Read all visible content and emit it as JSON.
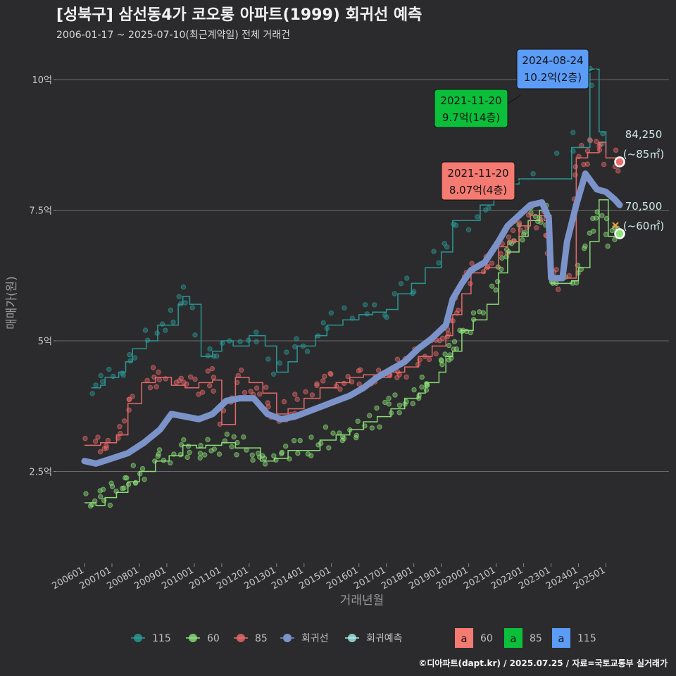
{
  "chart_data": {
    "type": "line",
    "title": "[성북구] 삼선동4가 코오롱 아파트(1999) 회귀선 예측",
    "subtitle": "2006-01-17 ~ 2025-07-10(최근계약일) 전체 거래건",
    "xlabel": "거래년월",
    "ylabel": "매매가(원)",
    "x_range": [
      "2006-01",
      "2025-07"
    ],
    "ylim": [
      0.8,
      10.7
    ],
    "x_ticks": [
      "200601",
      "200701",
      "200801",
      "200901",
      "201001",
      "201101",
      "201201",
      "201301",
      "201401",
      "201501",
      "201601",
      "201701",
      "201801",
      "201901",
      "202001",
      "202101",
      "202201",
      "202301",
      "202401",
      "202501"
    ],
    "y_ticks": [
      {
        "value": 2.5,
        "label": "2.5억"
      },
      {
        "value": 5,
        "label": "5억"
      },
      {
        "value": 7.5,
        "label": "7.5억"
      },
      {
        "value": 10,
        "label": "10억"
      }
    ],
    "grid": true,
    "colors": {
      "s115": "#2a9d9a",
      "s60": "#8ee57a",
      "s85": "#ef6b6b",
      "reg": "#7b93c9",
      "pred": "#a8f0ee",
      "bg": "#2b2b2d"
    },
    "series": [
      {
        "name": "115",
        "color": "#2a9d9a",
        "points": [
          [
            "2006-04",
            4.1
          ],
          [
            "2006-08",
            4.15
          ],
          [
            "2006-10",
            4.3
          ],
          [
            "2007-04",
            4.4
          ],
          [
            "2007-07",
            4.6
          ],
          [
            "2007-10",
            4.85
          ],
          [
            "2008-04",
            5.0
          ],
          [
            "2008-09",
            5.3
          ],
          [
            "2009-02",
            5.3
          ],
          [
            "2009-06",
            5.7
          ],
          [
            "2009-08",
            5.85
          ],
          [
            "2009-11",
            5.7
          ],
          [
            "2010-04",
            4.7
          ],
          [
            "2010-09",
            4.8
          ],
          [
            "2011-01",
            5.0
          ],
          [
            "2011-06",
            4.9
          ],
          [
            "2012-01",
            5.1
          ],
          [
            "2012-08",
            4.9
          ],
          [
            "2013-01",
            4.4
          ],
          [
            "2013-06",
            4.6
          ],
          [
            "2013-10",
            4.9
          ],
          [
            "2014-06",
            5.1
          ],
          [
            "2014-11",
            5.3
          ],
          [
            "2015-06",
            5.4
          ],
          [
            "2016-01",
            5.5
          ],
          [
            "2016-07",
            5.55
          ],
          [
            "2017-01",
            5.6
          ],
          [
            "2017-06",
            5.9
          ],
          [
            "2017-12",
            6.1
          ],
          [
            "2018-06",
            6.4
          ],
          [
            "2019-01",
            6.7
          ],
          [
            "2019-06",
            7.3
          ],
          [
            "2019-12",
            7.3
          ],
          [
            "2020-06",
            7.6
          ],
          [
            "2020-12",
            7.8
          ],
          [
            "2021-06",
            8.0
          ],
          [
            "2021-11",
            8.1
          ],
          [
            "2023-10",
            8.7
          ],
          [
            "2024-06",
            10.2
          ],
          [
            "2024-10",
            9.0
          ],
          [
            "2025-01",
            8.6
          ]
        ]
      },
      {
        "name": "60",
        "color": "#8ee57a",
        "points": [
          [
            "2006-01",
            1.9
          ],
          [
            "2006-06",
            1.85
          ],
          [
            "2006-10",
            2.0
          ],
          [
            "2007-03",
            2.1
          ],
          [
            "2007-08",
            2.3
          ],
          [
            "2008-01",
            2.5
          ],
          [
            "2008-08",
            2.7
          ],
          [
            "2009-02",
            2.8
          ],
          [
            "2009-08",
            3.0
          ],
          [
            "2010-02",
            2.95
          ],
          [
            "2010-06",
            3.0
          ],
          [
            "2011-01",
            3.05
          ],
          [
            "2011-07",
            2.95
          ],
          [
            "2012-01",
            2.95
          ],
          [
            "2012-06",
            2.7
          ],
          [
            "2012-12",
            2.75
          ],
          [
            "2013-06",
            2.9
          ],
          [
            "2014-01",
            2.9
          ],
          [
            "2014-08",
            3.1
          ],
          [
            "2015-03",
            3.2
          ],
          [
            "2015-09",
            3.3
          ],
          [
            "2016-03",
            3.45
          ],
          [
            "2016-09",
            3.55
          ],
          [
            "2017-03",
            3.7
          ],
          [
            "2017-09",
            3.9
          ],
          [
            "2018-03",
            4.0
          ],
          [
            "2018-06",
            4.2
          ],
          [
            "2018-12",
            4.4
          ],
          [
            "2019-03",
            4.7
          ],
          [
            "2019-06",
            4.8
          ],
          [
            "2019-10",
            5.2
          ],
          [
            "2020-03",
            5.4
          ],
          [
            "2020-09",
            5.7
          ],
          [
            "2021-02",
            6.3
          ],
          [
            "2021-06",
            6.7
          ],
          [
            "2021-11",
            7.0
          ],
          [
            "2022-03",
            7.3
          ],
          [
            "2022-08",
            7.5
          ],
          [
            "2022-12",
            7.4
          ],
          [
            "2023-01",
            6.1
          ],
          [
            "2023-10",
            6.15
          ],
          [
            "2024-01",
            6.4
          ],
          [
            "2024-06",
            6.9
          ],
          [
            "2024-10",
            7.7
          ],
          [
            "2025-02",
            7.0
          ],
          [
            "2025-07",
            7.05
          ]
        ]
      },
      {
        "name": "85",
        "color": "#ef6b6b",
        "points": [
          [
            "2006-01",
            3.0
          ],
          [
            "2006-08",
            3.05
          ],
          [
            "2007-03",
            3.2
          ],
          [
            "2007-08",
            3.8
          ],
          [
            "2008-02",
            4.2
          ],
          [
            "2008-08",
            4.3
          ],
          [
            "2009-03",
            4.15
          ],
          [
            "2009-09",
            4.1
          ],
          [
            "2010-03",
            4.2
          ],
          [
            "2010-09",
            4.25
          ],
          [
            "2011-01",
            3.4
          ],
          [
            "2011-07",
            4.3
          ],
          [
            "2012-01",
            4.2
          ],
          [
            "2012-07",
            4.0
          ],
          [
            "2013-01",
            3.6
          ],
          [
            "2013-06",
            3.7
          ],
          [
            "2014-01",
            3.9
          ],
          [
            "2014-08",
            4.1
          ],
          [
            "2015-03",
            4.2
          ],
          [
            "2015-09",
            4.3
          ],
          [
            "2016-03",
            4.35
          ],
          [
            "2016-09",
            4.3
          ],
          [
            "2017-03",
            4.4
          ],
          [
            "2017-09",
            4.5
          ],
          [
            "2018-03",
            4.7
          ],
          [
            "2018-09",
            4.9
          ],
          [
            "2019-03",
            5.1
          ],
          [
            "2019-06",
            5.5
          ],
          [
            "2019-10",
            5.9
          ],
          [
            "2020-02",
            6.3
          ],
          [
            "2020-08",
            6.4
          ],
          [
            "2021-02",
            6.8
          ],
          [
            "2021-06",
            6.9
          ],
          [
            "2021-11",
            7.2
          ],
          [
            "2022-04",
            7.4
          ],
          [
            "2022-10",
            7.3
          ],
          [
            "2023-01",
            6.2
          ],
          [
            "2023-10",
            6.2
          ],
          [
            "2023-12",
            8.5
          ],
          [
            "2024-05",
            8.6
          ],
          [
            "2024-10",
            8.8
          ],
          [
            "2025-01",
            8.5
          ],
          [
            "2025-07",
            8.45
          ]
        ]
      },
      {
        "name": "회귀선",
        "color": "#7b93c9",
        "points": [
          [
            "2006-01",
            2.7
          ],
          [
            "2006-06",
            2.65
          ],
          [
            "2007-01",
            2.75
          ],
          [
            "2007-08",
            2.85
          ],
          [
            "2008-03",
            3.05
          ],
          [
            "2008-10",
            3.3
          ],
          [
            "2009-03",
            3.6
          ],
          [
            "2009-09",
            3.55
          ],
          [
            "2010-03",
            3.5
          ],
          [
            "2010-09",
            3.6
          ],
          [
            "2011-03",
            3.85
          ],
          [
            "2011-09",
            3.9
          ],
          [
            "2012-03",
            3.9
          ],
          [
            "2012-09",
            3.6
          ],
          [
            "2013-03",
            3.5
          ],
          [
            "2013-09",
            3.55
          ],
          [
            "2014-03",
            3.65
          ],
          [
            "2014-09",
            3.75
          ],
          [
            "2015-03",
            3.85
          ],
          [
            "2015-09",
            3.95
          ],
          [
            "2016-03",
            4.1
          ],
          [
            "2016-09",
            4.3
          ],
          [
            "2017-03",
            4.45
          ],
          [
            "2017-09",
            4.6
          ],
          [
            "2018-03",
            4.85
          ],
          [
            "2018-09",
            5.05
          ],
          [
            "2019-03",
            5.3
          ],
          [
            "2019-06",
            5.8
          ],
          [
            "2019-10",
            6.1
          ],
          [
            "2020-02",
            6.35
          ],
          [
            "2020-08",
            6.5
          ],
          [
            "2021-02",
            6.9
          ],
          [
            "2021-06",
            7.2
          ],
          [
            "2021-11",
            7.4
          ],
          [
            "2022-04",
            7.6
          ],
          [
            "2022-09",
            7.65
          ],
          [
            "2022-12",
            7.35
          ],
          [
            "2023-01",
            6.2
          ],
          [
            "2023-06",
            6.2
          ],
          [
            "2023-08",
            6.9
          ],
          [
            "2023-12",
            7.6
          ],
          [
            "2024-04",
            8.2
          ],
          [
            "2024-09",
            7.9
          ],
          [
            "2025-01",
            7.85
          ],
          [
            "2025-05",
            7.7
          ],
          [
            "2025-07",
            7.6
          ]
        ]
      }
    ],
    "annotations": [
      {
        "date": "2024-08-24",
        "value": 10.2,
        "label_date": "2024-08-24",
        "label_price": "10.2억(2층)",
        "color": "#5b9cf7"
      },
      {
        "date": "2021-11-20",
        "value": 9.7,
        "label_date": "2021-11-20",
        "label_price": "9.7억(14층)",
        "color": "#0bbf3b"
      },
      {
        "date": "2021-11-20",
        "value": 8.07,
        "label_date": "2021-11-20",
        "label_price": "8.07억(4층)",
        "color": "#f47a72"
      }
    ],
    "predictions": [
      {
        "value": 8.425,
        "color": "#ef6b6b",
        "price": "84,250",
        "area": "(~85㎡)"
      },
      {
        "value": 7.05,
        "color": "#8ee57a",
        "price": "70,500",
        "area": "(~60㎡)"
      }
    ],
    "legend": {
      "placement": "bottom",
      "items": [
        {
          "label": "115",
          "color": "#2a9d9a"
        },
        {
          "label": "60",
          "color": "#8ee57a"
        },
        {
          "label": "85",
          "color": "#ef6b6b"
        },
        {
          "label": "회귀선",
          "color": "#7b93c9"
        },
        {
          "label": "회귀예측",
          "color": "#a8f0ee"
        }
      ],
      "label_items": [
        {
          "glyph": "a",
          "label": "60",
          "color": "#f47a72"
        },
        {
          "glyph": "a",
          "label": "85",
          "color": "#0bbf3b"
        },
        {
          "glyph": "a",
          "label": "115",
          "color": "#5b9cf7"
        }
      ]
    }
  },
  "caption": "©디아파트(dapt.kr) / 2025.07.25 / 자료=국토교통부 실거래가"
}
